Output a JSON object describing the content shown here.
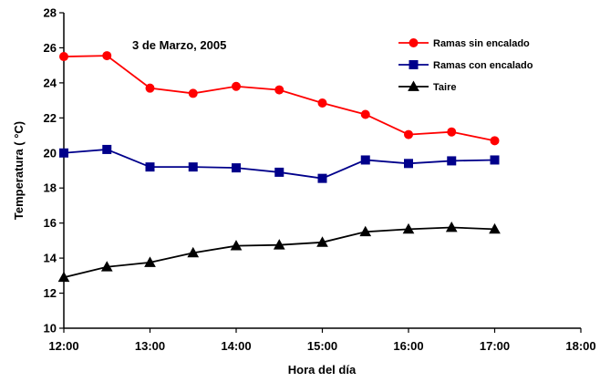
{
  "chart_data": {
    "type": "line",
    "title": "",
    "annotation": "3 de Marzo, 2005",
    "xlabel": "Hora del día",
    "ylabel": "Temperatura ( °C)",
    "x_tick_labels": [
      "12:00",
      "13:00",
      "14:00",
      "15:00",
      "16:00",
      "17:00",
      "18:00"
    ],
    "x_tick_values": [
      12,
      13,
      14,
      15,
      16,
      17,
      18
    ],
    "xlim": [
      12,
      18
    ],
    "y_tick_labels": [
      "10",
      "12",
      "14",
      "16",
      "18",
      "20",
      "22",
      "24",
      "26",
      "28"
    ],
    "y_tick_values": [
      10,
      12,
      14,
      16,
      18,
      20,
      22,
      24,
      26,
      28
    ],
    "ylim": [
      10,
      28
    ],
    "grid": false,
    "legend_position": "top-right",
    "x": [
      12.0,
      12.5,
      13.0,
      13.5,
      14.0,
      14.5,
      15.0,
      15.5,
      16.0,
      16.5,
      17.0
    ],
    "series": [
      {
        "name": "Ramas sin encalado",
        "color": "#ff0000",
        "marker": "circle",
        "values": [
          25.5,
          25.55,
          23.7,
          23.4,
          23.8,
          23.6,
          22.85,
          22.2,
          21.05,
          21.2,
          20.7
        ]
      },
      {
        "name": "Ramas con encalado",
        "color": "#00008b",
        "marker": "square",
        "values": [
          20.0,
          20.2,
          19.2,
          19.2,
          19.15,
          18.9,
          18.55,
          19.6,
          19.4,
          19.55,
          19.6
        ]
      },
      {
        "name": "Taire",
        "color": "#000000",
        "marker": "triangle",
        "values": [
          12.9,
          13.5,
          13.75,
          14.3,
          14.7,
          14.75,
          14.9,
          15.5,
          15.65,
          15.75,
          15.65
        ]
      }
    ]
  }
}
